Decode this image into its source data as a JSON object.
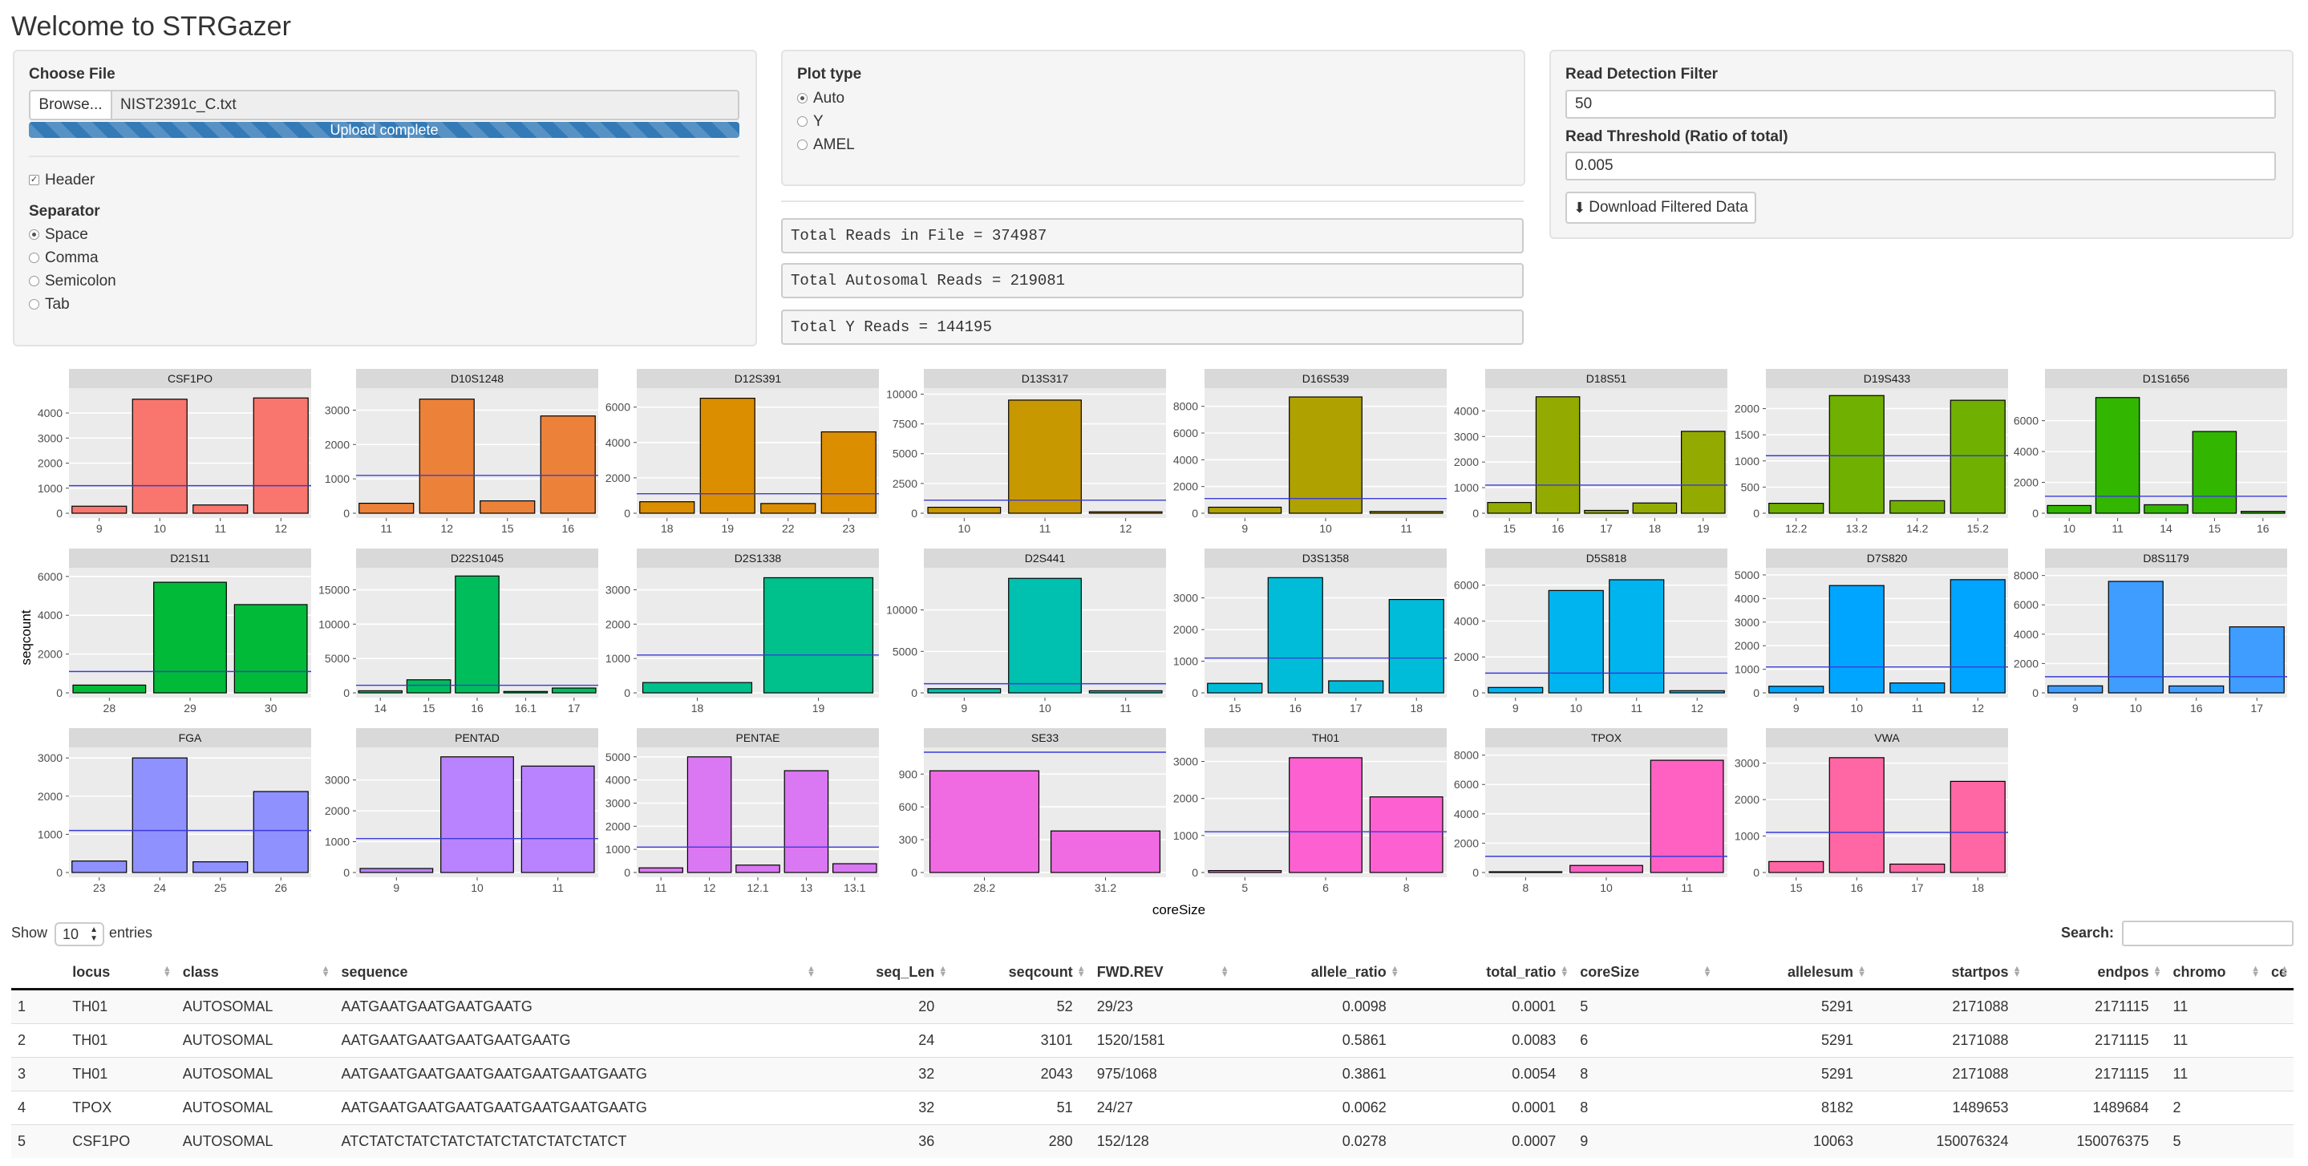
{
  "title": "Welcome to STRGazer",
  "upload": {
    "choose_file_label": "Choose File",
    "browse_label": "Browse...",
    "file_name": "NIST2391c_C.txt",
    "progress_text": "Upload complete",
    "progress": 1.0,
    "header_label": "Header",
    "header_checked": true,
    "separator_label": "Separator",
    "separators": [
      "Space",
      "Comma",
      "Semicolon",
      "Tab"
    ],
    "separator_selected": "Space"
  },
  "plot": {
    "plot_type_label": "Plot type",
    "options": [
      "Auto",
      "Y",
      "AMEL"
    ],
    "selected": "Auto"
  },
  "reads": {
    "total_file": "Total Reads in File =  374987",
    "total_autosomal": "Total Autosomal Reads =  219081",
    "total_y": "Total Y Reads =  144195"
  },
  "filter": {
    "read_detection_label": "Read Detection Filter",
    "read_detection_value": "50",
    "read_threshold_label": "Read Threshold (Ratio of total)",
    "read_threshold_value": "0.005",
    "download_label": "Download Filtered Data"
  },
  "chart_data": {
    "type": "bar",
    "xlabel": "coreSize",
    "ylabel": "seqcount",
    "threshold_color": "#3b3bd9",
    "panels": [
      {
        "name": "CSF1PO",
        "categories": [
          "9",
          "10",
          "11",
          "12"
        ],
        "values": [
          280,
          4550,
          330,
          4600
        ],
        "ticks": [
          0,
          1000,
          2000,
          3000,
          4000
        ],
        "ymax": 4800,
        "threshold": 1100,
        "color": "#f8766d"
      },
      {
        "name": "D10S1248",
        "categories": [
          "11",
          "12",
          "15",
          "16"
        ],
        "values": [
          290,
          3320,
          360,
          2830
        ],
        "ticks": [
          0,
          1000,
          2000,
          3000
        ],
        "ymax": 3500,
        "threshold": 1100,
        "color": "#ec8239"
      },
      {
        "name": "D12S391",
        "categories": [
          "18",
          "19",
          "22",
          "23"
        ],
        "values": [
          650,
          6500,
          550,
          4600
        ],
        "ticks": [
          0,
          2000,
          4000,
          6000
        ],
        "ymax": 6800,
        "threshold": 1100,
        "color": "#db8e00"
      },
      {
        "name": "D13S317",
        "categories": [
          "10",
          "11",
          "12"
        ],
        "values": [
          500,
          9500,
          120
        ],
        "ticks": [
          0,
          2500,
          5000,
          7500,
          10000
        ],
        "ymax": 10100,
        "threshold": 1100,
        "color": "#c79800"
      },
      {
        "name": "D16S539",
        "categories": [
          "9",
          "10",
          "11"
        ],
        "values": [
          450,
          8700,
          130
        ],
        "ticks": [
          0,
          2000,
          4000,
          6000,
          8000
        ],
        "ymax": 9000,
        "threshold": 1100,
        "color": "#afa100"
      },
      {
        "name": "D18S51",
        "categories": [
          "15",
          "16",
          "17",
          "18",
          "19"
        ],
        "values": [
          420,
          4550,
          110,
          400,
          3200
        ],
        "ticks": [
          0,
          1000,
          2000,
          3000,
          4000
        ],
        "ymax": 4700,
        "threshold": 1100,
        "color": "#93aa00"
      },
      {
        "name": "D19S433",
        "categories": [
          "12.2",
          "13.2",
          "14.2",
          "15.2"
        ],
        "values": [
          190,
          2250,
          240,
          2160
        ],
        "ticks": [
          0,
          500,
          1000,
          1500,
          2000
        ],
        "ymax": 2300,
        "threshold": 1100,
        "color": "#6fb000"
      },
      {
        "name": "D1S1656",
        "categories": [
          "10",
          "11",
          "14",
          "15",
          "16"
        ],
        "values": [
          500,
          7500,
          550,
          5300,
          120
        ],
        "ticks": [
          0,
          2000,
          4000,
          6000
        ],
        "ymax": 7800,
        "threshold": 1100,
        "color": "#32b600"
      },
      {
        "name": "D21S11",
        "categories": [
          "28",
          "29",
          "30"
        ],
        "values": [
          400,
          5700,
          4550
        ],
        "ticks": [
          0,
          2000,
          4000,
          6000
        ],
        "ymax": 6200,
        "threshold": 1100,
        "color": "#00ba38"
      },
      {
        "name": "D22S1045",
        "categories": [
          "14",
          "15",
          "16",
          "16.1",
          "17"
        ],
        "values": [
          300,
          1900,
          17000,
          200,
          700
        ],
        "ticks": [
          0,
          5000,
          10000,
          15000
        ],
        "ymax": 17500,
        "threshold": 1100,
        "color": "#00bd5c"
      },
      {
        "name": "D2S1338",
        "categories": [
          "18",
          "19"
        ],
        "values": [
          300,
          3350
        ],
        "ticks": [
          0,
          1000,
          2000,
          3000
        ],
        "ymax": 3500,
        "threshold": 1100,
        "color": "#00c08b"
      },
      {
        "name": "D2S441",
        "categories": [
          "9",
          "10",
          "11"
        ],
        "values": [
          500,
          13800,
          250
        ],
        "ticks": [
          0,
          5000,
          10000
        ],
        "ymax": 14500,
        "threshold": 1100,
        "color": "#00c0af"
      },
      {
        "name": "D3S1358",
        "categories": [
          "15",
          "16",
          "17",
          "18"
        ],
        "values": [
          300,
          3640,
          380,
          2950
        ],
        "ticks": [
          0,
          1000,
          2000,
          3000
        ],
        "ymax": 3800,
        "threshold": 1100,
        "color": "#00bcd8"
      },
      {
        "name": "D5S818",
        "categories": [
          "9",
          "10",
          "11",
          "12"
        ],
        "values": [
          300,
          5700,
          6300,
          120
        ],
        "ticks": [
          0,
          2000,
          4000,
          6000
        ],
        "ymax": 6700,
        "threshold": 1100,
        "color": "#00b4ef"
      },
      {
        "name": "D7S820",
        "categories": [
          "9",
          "10",
          "11",
          "12"
        ],
        "values": [
          280,
          4550,
          420,
          4800
        ],
        "ticks": [
          0,
          1000,
          2000,
          3000,
          4000,
          5000
        ],
        "ymax": 5100,
        "threshold": 1100,
        "color": "#00a5ff"
      },
      {
        "name": "D8S1179",
        "categories": [
          "9",
          "10",
          "16",
          "17"
        ],
        "values": [
          480,
          7600,
          470,
          4500
        ],
        "ticks": [
          0,
          2000,
          4000,
          6000,
          8000
        ],
        "ymax": 8200,
        "threshold": 1100,
        "color": "#3e9dff"
      },
      {
        "name": "FGA",
        "categories": [
          "23",
          "24",
          "25",
          "26"
        ],
        "values": [
          300,
          3000,
          280,
          2120
        ],
        "ticks": [
          0,
          1000,
          2000,
          3000
        ],
        "ymax": 3150,
        "threshold": 1100,
        "color": "#8f91ff"
      },
      {
        "name": "PENTAD",
        "categories": [
          "9",
          "10",
          "11"
        ],
        "values": [
          130,
          3750,
          3450
        ],
        "ticks": [
          0,
          1000,
          2000,
          3000
        ],
        "ymax": 3900,
        "threshold": 1100,
        "color": "#b983ff"
      },
      {
        "name": "PENTAE",
        "categories": [
          "11",
          "12",
          "12.1",
          "13",
          "13.1"
        ],
        "values": [
          200,
          5000,
          320,
          4400,
          380
        ],
        "ticks": [
          0,
          1000,
          2000,
          3000,
          4000,
          5000
        ],
        "ymax": 5200,
        "threshold": 1100,
        "color": "#da77f2"
      },
      {
        "name": "SE33",
        "categories": [
          "28.2",
          "31.2"
        ],
        "values": [
          930,
          380
        ],
        "ticks": [
          0,
          300,
          600,
          900
        ],
        "ymax": 1100,
        "threshold": 1100,
        "color": "#f06ae1"
      },
      {
        "name": "TH01",
        "categories": [
          "5",
          "6",
          "8"
        ],
        "values": [
          52,
          3101,
          2043
        ],
        "ticks": [
          0,
          1000,
          2000,
          3000
        ],
        "ymax": 3250,
        "threshold": 1100,
        "color": "#fd61d1"
      },
      {
        "name": "TPOX",
        "categories": [
          "8",
          "10",
          "11"
        ],
        "values": [
          51,
          480,
          7650
        ],
        "ticks": [
          0,
          2000,
          4000,
          6000,
          8000
        ],
        "ymax": 8200,
        "threshold": 1100,
        "color": "#ff61c3"
      },
      {
        "name": "VWA",
        "categories": [
          "15",
          "16",
          "17",
          "18"
        ],
        "values": [
          300,
          3150,
          230,
          2500
        ],
        "ticks": [
          0,
          1000,
          2000,
          3000
        ],
        "ymax": 3300,
        "threshold": 1100,
        "color": "#ff67a4"
      }
    ]
  },
  "table": {
    "show_label": "Show",
    "entries_value": "10",
    "entries_label": "entries",
    "search_label": "Search:",
    "columns": [
      "",
      "locus",
      "class",
      "sequence",
      "seq_Len",
      "seqcount",
      "FWD.REV",
      "allele_ratio",
      "total_ratio",
      "coreSize",
      "allelesum",
      "startpos",
      "endpos",
      "chromo",
      "ce"
    ],
    "rows": [
      [
        "1",
        "TH01",
        "AUTOSOMAL",
        "AATGAATGAATGAATGAATG",
        "20",
        "52",
        "29/23",
        "0.0098",
        "0.0001",
        "5",
        "5291",
        "2171088",
        "2171115",
        "11",
        ""
      ],
      [
        "2",
        "TH01",
        "AUTOSOMAL",
        "AATGAATGAATGAATGAATGAATG",
        "24",
        "3101",
        "1520/1581",
        "0.5861",
        "0.0083",
        "6",
        "5291",
        "2171088",
        "2171115",
        "11",
        ""
      ],
      [
        "3",
        "TH01",
        "AUTOSOMAL",
        "AATGAATGAATGAATGAATGAATGAATGAATG",
        "32",
        "2043",
        "975/1068",
        "0.3861",
        "0.0054",
        "8",
        "5291",
        "2171088",
        "2171115",
        "11",
        ""
      ],
      [
        "4",
        "TPOX",
        "AUTOSOMAL",
        "AATGAATGAATGAATGAATGAATGAATGAATG",
        "32",
        "51",
        "24/27",
        "0.0062",
        "0.0001",
        "8",
        "8182",
        "1489653",
        "1489684",
        "2",
        ""
      ],
      [
        "5",
        "CSF1PO",
        "AUTOSOMAL",
        "ATCTATCTATCTATCTATCTATCTATCTATCT",
        "36",
        "280",
        "152/128",
        "0.0278",
        "0.0007",
        "9",
        "10063",
        "150076324",
        "150076375",
        "5",
        ""
      ]
    ]
  }
}
